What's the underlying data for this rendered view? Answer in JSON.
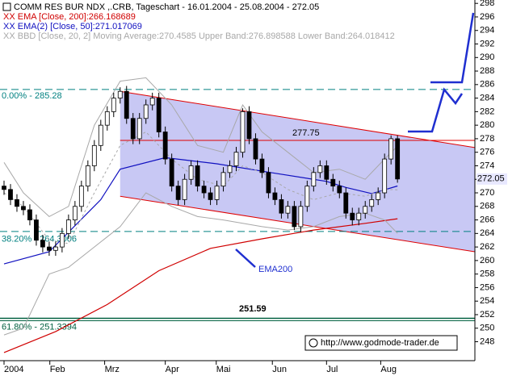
{
  "chart_data": {
    "type": "candlestick",
    "title": "COMM RES BUR NDX ,.CRB, Tageschart - 16.01.2004 - 25.08.2004 - 272.05",
    "x": [
      0,
      1,
      2,
      3,
      4,
      5,
      6,
      7,
      8,
      9,
      10,
      11,
      12,
      13,
      14,
      15,
      16,
      17,
      18,
      19,
      20,
      21,
      22,
      23,
      24,
      25,
      26,
      27,
      28,
      29,
      30,
      31,
      32,
      33,
      34,
      35,
      36,
      37,
      38,
      39,
      40,
      41,
      42,
      43,
      44,
      45,
      46,
      47,
      48,
      49,
      50,
      51,
      52,
      53,
      54,
      55,
      56,
      57,
      58,
      59,
      60,
      61
    ],
    "open": [
      271,
      270.5,
      269,
      268,
      267.5,
      266,
      263,
      262,
      261.5,
      262,
      264,
      266,
      268,
      271,
      274,
      277,
      280,
      282,
      284,
      285,
      281,
      278,
      281,
      283,
      284,
      279,
      275,
      271,
      269,
      272,
      274,
      271,
      270,
      269,
      271,
      273,
      274,
      276,
      282,
      278,
      275,
      273,
      270,
      269,
      267,
      268,
      265,
      268,
      271,
      273,
      274,
      272,
      271,
      270,
      267,
      266,
      267,
      268,
      269,
      270,
      275,
      278
    ],
    "high": [
      271.8,
      271.3,
      269.8,
      268.8,
      268.3,
      266.8,
      263.8,
      262.8,
      262.8,
      264.8,
      266.8,
      268.8,
      271.8,
      274.8,
      277.8,
      280.8,
      282.8,
      284.8,
      285.6,
      285.8,
      281.8,
      281.8,
      283.8,
      284.8,
      284.8,
      279.8,
      275.8,
      271.8,
      272.8,
      274.8,
      274.8,
      271.8,
      270.8,
      271.8,
      273.8,
      274.8,
      276.8,
      282.5,
      282.8,
      278.8,
      275.8,
      273.8,
      270.8,
      269.8,
      268.8,
      268.8,
      268.8,
      271.8,
      273.8,
      274.8,
      274.8,
      272.8,
      271.8,
      270.8,
      267.8,
      267.8,
      268.8,
      269.8,
      270.8,
      275.8,
      278.5,
      278.5
    ],
    "low": [
      269.7,
      268.2,
      267.2,
      266.7,
      265.2,
      262.2,
      261.2,
      260.7,
      260.7,
      261.2,
      263.2,
      265.2,
      267.2,
      270.2,
      273.2,
      276.2,
      279.2,
      281.2,
      283.2,
      280.2,
      277.2,
      277.2,
      280.2,
      282.2,
      278.2,
      274.2,
      270.2,
      268.2,
      268.2,
      271.2,
      270.2,
      269.2,
      268.2,
      268.2,
      270.2,
      272.2,
      273.2,
      275.2,
      277.2,
      274.2,
      272.2,
      269.2,
      268.2,
      266.2,
      266.2,
      264.5,
      264.2,
      267.2,
      270.2,
      272.2,
      271.2,
      270.2,
      269.2,
      266.2,
      265.2,
      265.2,
      266.2,
      267.2,
      268.2,
      269.2,
      274.2,
      271.5
    ],
    "close": [
      270.5,
      269,
      268,
      267.5,
      266,
      263,
      262,
      261.5,
      262,
      264,
      266,
      268,
      271,
      274,
      277,
      280,
      282,
      284,
      285,
      281,
      278,
      281,
      283,
      284,
      279,
      275,
      271,
      269,
      272,
      274,
      271,
      270,
      269,
      271,
      273,
      274,
      276,
      282,
      278,
      275,
      273,
      270,
      269,
      267,
      268,
      265,
      268,
      271,
      273,
      274,
      272,
      271,
      270,
      267,
      266,
      267,
      268,
      269,
      270,
      275,
      278,
      272.05
    ],
    "color_up": "#ffffff",
    "color_down": "#000000",
    "last_price": 272.05,
    "indicators": [
      {
        "name": "XX EMA [Close, 200]:266.168689",
        "color": "#d00000",
        "x": [
          0,
          8,
          16,
          24,
          32,
          40,
          48,
          56,
          61
        ],
        "values": [
          246.4,
          249.5,
          253.5,
          258.5,
          261.8,
          263.2,
          264.5,
          265.5,
          266.17
        ]
      },
      {
        "name": "XX EMA(2) [Close, 50]:271.017069",
        "color": "#1010c0",
        "x": [
          0,
          7,
          15,
          18,
          25,
          33,
          42,
          50,
          53,
          57,
          61
        ],
        "values": [
          259.5,
          261.3,
          269,
          273.5,
          275.2,
          274.3,
          272.9,
          271.7,
          270.8,
          269.9,
          271.02
        ]
      },
      {
        "name": "XX BBD [Close, 20, 2] Moving Average:270.4585 Upper Band:276.898588 Lower Band:264.018412",
        "color": "#a8a8a8",
        "x": [
          0,
          3,
          7,
          10,
          14,
          18,
          22,
          26,
          30,
          34,
          37,
          40,
          44,
          48,
          52,
          56,
          59,
          61
        ],
        "upper": [
          274.5,
          270,
          266.5,
          268,
          280,
          286.5,
          287,
          283,
          277,
          276,
          283,
          279,
          276,
          273,
          273.5,
          272,
          275,
          276.9
        ],
        "middle": [
          270,
          268,
          263,
          262.5,
          270,
          277,
          279,
          275,
          272,
          271,
          274,
          273,
          270.5,
          269,
          270,
          269.5,
          270.5,
          270.46
        ],
        "lower": [
          249,
          250,
          258,
          259,
          262,
          265,
          270,
          268,
          266.5,
          266,
          265.5,
          265,
          264.5,
          265,
          266.5,
          267,
          266,
          264.02
        ]
      }
    ],
    "channel": {
      "color": "#e00000",
      "fill": "#c8c8f4",
      "x": [
        18,
        73
      ],
      "upper": [
        285,
        276.7
      ],
      "lower": [
        269.5,
        261.3
      ]
    },
    "resistance": 277.75,
    "fib_levels": [
      {
        "label": "0.00% - 285.28",
        "value": 285.28,
        "color": "#008080",
        "dashed": true
      },
      {
        "label": "38.20% - 264.3006",
        "value": 264.3006,
        "color": "#008080",
        "dashed": true
      },
      {
        "label": "61.80% - 251.3394",
        "value": 251.3394,
        "color": "#006040",
        "dashed": false
      }
    ],
    "target": 251.59,
    "annotation": "EMA200",
    "source": "http://www.godmode-trader.de",
    "xlim": [
      0,
      73
    ],
    "ylim": [
      245.2,
      298.5
    ],
    "yticks": [
      248,
      250,
      252,
      254,
      256,
      258,
      260,
      262,
      264,
      266,
      268,
      270,
      272,
      274,
      276,
      278,
      280,
      282,
      284,
      286,
      288,
      290,
      292,
      294,
      296,
      298
    ],
    "xticks": [
      {
        "value": 0,
        "label": "2004"
      },
      {
        "value": 7.1,
        "label": "Feb"
      },
      {
        "value": 15.6,
        "label": "Mrz"
      },
      {
        "value": 25,
        "label": "Apr"
      },
      {
        "value": 32.9,
        "label": "Mai"
      },
      {
        "value": 41.6,
        "label": "Jun"
      },
      {
        "value": 50,
        "label": "Jul"
      },
      {
        "value": 58.4,
        "label": "Aug"
      }
    ]
  }
}
